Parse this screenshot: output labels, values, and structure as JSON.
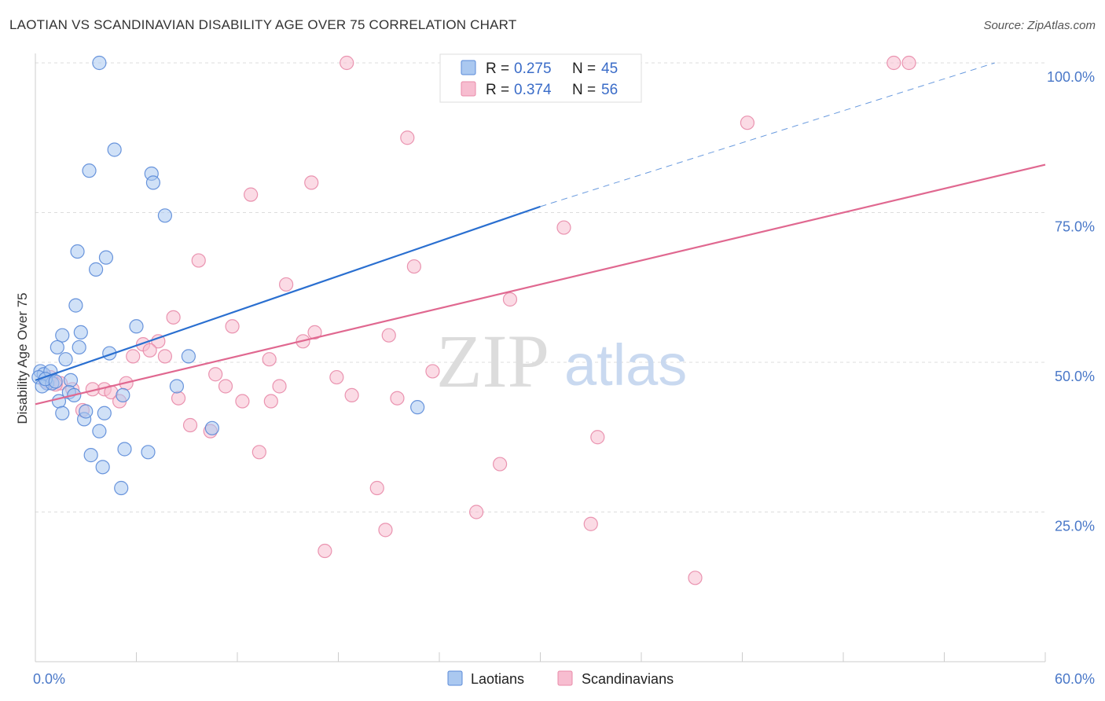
{
  "title": "LAOTIAN VS SCANDINAVIAN DISABILITY AGE OVER 75 CORRELATION CHART",
  "source": "Source: ZipAtlas.com",
  "watermark": {
    "zip": "ZIP",
    "atlas": "atlas"
  },
  "colors": {
    "laotians_fill": "#aac8f0",
    "laotians_stroke": "#5a8ad8",
    "laotians_line": "#2a6fd0",
    "scandinavians_fill": "#f7bdd0",
    "scandinavians_stroke": "#e88aa8",
    "scandinavians_line": "#e06890",
    "grid": "#dddddd",
    "axis_label": "#4a78c8"
  },
  "legend": {
    "rows": [
      {
        "r_label": "R = ",
        "r_value": "0.275",
        "n_label": "N = ",
        "n_value": "45"
      },
      {
        "r_label": "R = ",
        "r_value": "0.374",
        "n_label": "N = ",
        "n_value": "56"
      }
    ]
  },
  "bottom_legend": [
    "Laotians",
    "Scandinavians"
  ],
  "chart_data": {
    "type": "scatter",
    "ylabel": "Disability Age Over 75",
    "xlim": [
      0,
      60
    ],
    "ylim": [
      0,
      100
    ],
    "x_tick_labels": [
      "0.0%",
      "60.0%"
    ],
    "y_ticks": [
      25,
      50,
      75,
      100
    ],
    "y_tick_labels": [
      "25.0%",
      "50.0%",
      "75.0%",
      "100.0%"
    ],
    "grid": true,
    "series": [
      {
        "name": "Laotians",
        "trend": {
          "x0": 0,
          "y0": 47.0,
          "x1": 30,
          "y1": 76.0,
          "dashed_to_x": 57,
          "dashed_to_y": 100
        },
        "points": [
          [
            3.8,
            100
          ],
          [
            4.7,
            85.5
          ],
          [
            3.2,
            82
          ],
          [
            6.9,
            81.5
          ],
          [
            7.0,
            80
          ],
          [
            7.7,
            74.5
          ],
          [
            2.5,
            68.5
          ],
          [
            4.2,
            67.5
          ],
          [
            3.6,
            65.5
          ],
          [
            2.4,
            59.5
          ],
          [
            6.0,
            56
          ],
          [
            2.7,
            55
          ],
          [
            1.6,
            54.5
          ],
          [
            1.3,
            52.5
          ],
          [
            2.6,
            52.5
          ],
          [
            4.4,
            51.5
          ],
          [
            9.1,
            51
          ],
          [
            1.8,
            50.5
          ],
          [
            0.3,
            48.5
          ],
          [
            0.5,
            48
          ],
          [
            0.9,
            48.5
          ],
          [
            0.2,
            47.5
          ],
          [
            2.1,
            47
          ],
          [
            0.7,
            46.5
          ],
          [
            0.4,
            46
          ],
          [
            1.0,
            46.5
          ],
          [
            8.4,
            46
          ],
          [
            2.0,
            45
          ],
          [
            2.3,
            44.5
          ],
          [
            5.2,
            44.5
          ],
          [
            1.4,
            43.5
          ],
          [
            1.6,
            41.5
          ],
          [
            4.1,
            41.5
          ],
          [
            2.9,
            40.5
          ],
          [
            10.5,
            39
          ],
          [
            3.8,
            38.5
          ],
          [
            22.7,
            42.5
          ],
          [
            5.3,
            35.5
          ],
          [
            6.7,
            35
          ],
          [
            3.3,
            34.5
          ],
          [
            4.0,
            32.5
          ],
          [
            5.1,
            29
          ],
          [
            0.6,
            47.2
          ],
          [
            1.2,
            46.8
          ],
          [
            3.0,
            41.8
          ]
        ]
      },
      {
        "name": "Scandinavians",
        "trend": {
          "x0": 0,
          "y0": 43.0,
          "x1": 60,
          "y1": 83.0
        },
        "points": [
          [
            18.5,
            100
          ],
          [
            26.5,
            100
          ],
          [
            51.0,
            100
          ],
          [
            51.9,
            100
          ],
          [
            42.3,
            90
          ],
          [
            22.1,
            87.5
          ],
          [
            16.4,
            80
          ],
          [
            12.8,
            78
          ],
          [
            31.4,
            72.5
          ],
          [
            9.7,
            67
          ],
          [
            22.5,
            66
          ],
          [
            14.9,
            63
          ],
          [
            28.2,
            60.5
          ],
          [
            8.2,
            57.5
          ],
          [
            11.7,
            56
          ],
          [
            16.6,
            55
          ],
          [
            21.0,
            54.5
          ],
          [
            15.9,
            53.5
          ],
          [
            7.3,
            53.5
          ],
          [
            6.4,
            53
          ],
          [
            6.8,
            52
          ],
          [
            5.8,
            51
          ],
          [
            7.7,
            51
          ],
          [
            13.9,
            50.5
          ],
          [
            10.7,
            48
          ],
          [
            0.9,
            47.5
          ],
          [
            1.5,
            46.5
          ],
          [
            5.4,
            46.5
          ],
          [
            11.3,
            46
          ],
          [
            14.5,
            46
          ],
          [
            4.1,
            45.5
          ],
          [
            2.2,
            45.5
          ],
          [
            3.4,
            45.5
          ],
          [
            4.5,
            45
          ],
          [
            18.8,
            44.5
          ],
          [
            21.5,
            44
          ],
          [
            8.5,
            44
          ],
          [
            14.0,
            43.5
          ],
          [
            12.3,
            43.5
          ],
          [
            5.0,
            43.5
          ],
          [
            2.8,
            42
          ],
          [
            9.2,
            39.5
          ],
          [
            10.4,
            38.5
          ],
          [
            33.4,
            37.5
          ],
          [
            13.3,
            35
          ],
          [
            27.6,
            33
          ],
          [
            20.3,
            29
          ],
          [
            26.2,
            25
          ],
          [
            33.0,
            23
          ],
          [
            20.8,
            22
          ],
          [
            17.2,
            18.5
          ],
          [
            39.2,
            14
          ],
          [
            1.2,
            46.3
          ],
          [
            0.6,
            46.8
          ],
          [
            23.6,
            48.5
          ],
          [
            17.9,
            47.5
          ]
        ]
      }
    ]
  }
}
